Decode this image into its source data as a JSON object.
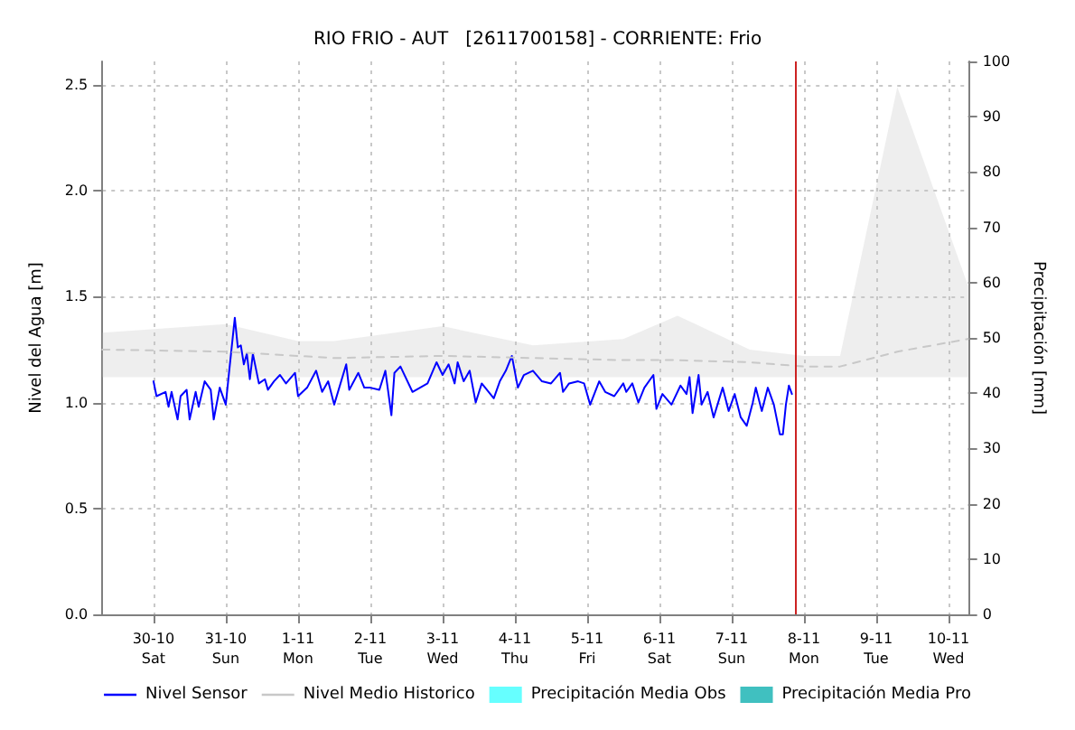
{
  "chart_data": {
    "type": "line",
    "title": "RIO FRIO - AUT   [2611700158] - CORRIENTE: Frio",
    "ylabel": "Nivel del Agua [m]",
    "y2label": "Precipitación [mm]",
    "xlim": [
      "--10-29T07:00",
      "--11-10T06:30"
    ],
    "xticks": [
      {
        "value": "--10-30",
        "label": "30-10\nSat"
      },
      {
        "value": "--10-31",
        "label": "31-10\nSun"
      },
      {
        "value": "--11-01",
        "label": "1-11\nMon"
      },
      {
        "value": "--11-02",
        "label": "2-11\nTue"
      },
      {
        "value": "--11-03",
        "label": "3-11\nWed"
      },
      {
        "value": "--11-04",
        "label": "4-11\nThu"
      },
      {
        "value": "--11-05",
        "label": "5-11\nFri"
      },
      {
        "value": "--11-06",
        "label": "6-11\nSat"
      },
      {
        "value": "--11-07",
        "label": "7-11\nSun"
      },
      {
        "value": "--11-08",
        "label": "8-11\nMon"
      },
      {
        "value": "--11-09",
        "label": "9-11\nTue"
      },
      {
        "value": "--11-10",
        "label": "10-11\nWed"
      }
    ],
    "ylim": [
      0,
      2.61
    ],
    "yticks": [
      {
        "value": 0,
        "label": "0.0"
      },
      {
        "value": 0.5,
        "label": "0.5"
      },
      {
        "value": 1,
        "label": "1.0"
      },
      {
        "value": 1.5,
        "label": "1.5"
      },
      {
        "value": 2,
        "label": "2.0"
      },
      {
        "value": 2.5,
        "label": "2.5"
      }
    ],
    "y2lim": [
      0,
      100
    ],
    "y2ticks": [
      0,
      10,
      20,
      30,
      40,
      50,
      60,
      70,
      80,
      90,
      100
    ],
    "grid": true,
    "legend": "bottom",
    "marker": "none",
    "ref_lines": [
      {
        "axis": "x",
        "value": "--11-07T21:00",
        "color": "#cc2222"
      }
    ],
    "series": [
      {
        "name": "Nivel Sensor",
        "color": "#0000ff",
        "x": [
          "--10-30T00:00",
          "--10-30T01:00",
          "--10-30T04:00",
          "--10-30T05:00",
          "--10-30T06:00",
          "--10-30T08:00",
          "--10-30T09:00",
          "--10-30T11:00",
          "--10-30T12:00",
          "--10-30T14:00",
          "--10-30T15:00",
          "--10-30T17:00",
          "--10-30T19:00",
          "--10-30T20:00",
          "--10-30T22:00",
          "--10-31T00:00",
          "--10-31T01:00",
          "--10-31T03:00",
          "--10-31T04:00",
          "--10-31T05:00",
          "--10-31T06:00",
          "--10-31T07:00",
          "--10-31T08:00",
          "--10-31T09:00",
          "--10-31T11:00",
          "--10-31T13:00",
          "--10-31T14:00",
          "--10-31T16:00",
          "--10-31T18:00",
          "--10-31T20:00",
          "--10-31T23:00",
          "--11-01T00:00",
          "--11-01T03:00",
          "--11-01T06:00",
          "--11-01T08:00",
          "--11-01T10:00",
          "--11-01T12:00",
          "--11-01T16:00",
          "--11-01T17:00",
          "--11-01T20:00",
          "--11-01T22:00",
          "--11-02T00:00",
          "--11-02T03:00",
          "--11-02T05:00",
          "--11-02T07:00",
          "--11-02T08:00",
          "--11-02T10:00",
          "--11-02T14:00",
          "--11-02T19:00",
          "--11-02T22:00",
          "--11-03T00:00",
          "--11-03T02:00",
          "--11-03T04:00",
          "--11-03T05:00",
          "--11-03T07:00",
          "--11-03T09:00",
          "--11-03T11:00",
          "--11-03T13:00",
          "--11-03T17:00",
          "--11-03T19:00",
          "--11-03T21:00",
          "--11-03T23:00",
          "--11-04T01:00",
          "--11-04T03:00",
          "--11-04T06:00",
          "--11-04T09:00",
          "--11-04T12:00",
          "--11-04T15:00",
          "--11-04T16:00",
          "--11-04T18:00",
          "--11-04T21:00",
          "--11-04T23:00",
          "--11-05T01:00",
          "--11-05T04:00",
          "--11-05T06:00",
          "--11-05T09:00",
          "--11-05T12:00",
          "--11-05T13:00",
          "--11-05T15:00",
          "--11-05T17:00",
          "--11-05T19:00",
          "--11-05T22:00",
          "--11-05T23:00",
          "--11-06T01:00",
          "--11-06T04:00",
          "--11-06T07:00",
          "--11-06T09:00",
          "--11-06T10:00",
          "--11-06T11:00",
          "--11-06T13:00",
          "--11-06T14:00",
          "--11-06T16:00",
          "--11-06T18:00",
          "--11-06T21:00",
          "--11-06T23:00",
          "--11-07T01:00",
          "--11-07T03:00",
          "--11-07T05:00",
          "--11-07T07:00",
          "--11-07T08:00",
          "--11-07T10:00",
          "--11-07T12:00",
          "--11-07T14:00",
          "--11-07T16:00",
          "--11-07T17:00",
          "--11-07T18:00",
          "--11-07T19:00",
          "--11-07T20:00"
        ],
        "values": [
          1.1,
          1.03,
          1.05,
          0.98,
          1.05,
          0.92,
          1.03,
          1.06,
          0.92,
          1.05,
          0.98,
          1.1,
          1.06,
          0.92,
          1.07,
          0.99,
          1.13,
          1.4,
          1.26,
          1.27,
          1.18,
          1.23,
          1.11,
          1.23,
          1.09,
          1.11,
          1.06,
          1.1,
          1.13,
          1.09,
          1.14,
          1.03,
          1.07,
          1.15,
          1.05,
          1.1,
          0.99,
          1.18,
          1.06,
          1.14,
          1.07,
          1.07,
          1.06,
          1.15,
          0.94,
          1.14,
          1.17,
          1.05,
          1.09,
          1.19,
          1.13,
          1.18,
          1.09,
          1.19,
          1.1,
          1.15,
          1.0,
          1.09,
          1.02,
          1.1,
          1.15,
          1.22,
          1.07,
          1.13,
          1.15,
          1.1,
          1.09,
          1.14,
          1.05,
          1.09,
          1.1,
          1.09,
          0.99,
          1.1,
          1.05,
          1.03,
          1.09,
          1.05,
          1.09,
          1.0,
          1.07,
          1.13,
          0.97,
          1.04,
          0.99,
          1.08,
          1.04,
          1.12,
          0.95,
          1.13,
          0.99,
          1.05,
          0.93,
          1.07,
          0.96,
          1.04,
          0.93,
          0.89,
          1.0,
          1.07,
          0.96,
          1.07,
          0.99,
          0.85,
          0.85,
          0.99,
          1.08,
          1.04
        ]
      },
      {
        "name": "Nivel Medio Historico",
        "color": "#c8c8c8",
        "line_style": "dashed",
        "x": [
          "--10-29T07:00",
          "--10-31T00:00",
          "--11-01T00:00",
          "--11-01T12:00",
          "--11-03T00:00",
          "--11-04T06:00",
          "--11-05T12:00",
          "--11-06T06:00",
          "--11-07T06:00",
          "--11-08T00:00",
          "--11-08T12:00",
          "--11-09T07:00",
          "--11-10T06:30"
        ],
        "values": [
          1.25,
          1.24,
          1.22,
          1.21,
          1.22,
          1.21,
          1.2,
          1.2,
          1.19,
          1.17,
          1.17,
          1.24,
          1.3
        ],
        "lower": [
          1.12,
          1.12,
          1.12,
          1.12,
          1.12,
          1.12,
          1.12,
          1.12,
          1.12,
          1.12,
          1.12,
          1.12,
          1.12
        ],
        "upper": [
          1.33,
          1.37,
          1.29,
          1.29,
          1.36,
          1.27,
          1.3,
          1.41,
          1.25,
          1.22,
          1.22,
          2.49,
          1.55
        ]
      },
      {
        "name": "Precipitación Media Obs",
        "type": "bar",
        "color": "#66ffff"
      },
      {
        "name": "Precipitación Media Pro",
        "type": "bar",
        "color": "#40c0c0"
      }
    ]
  }
}
